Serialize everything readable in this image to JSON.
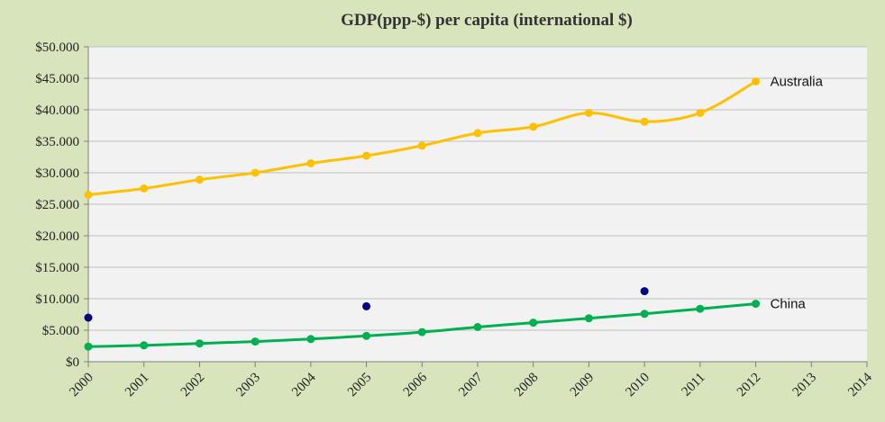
{
  "chart_data": {
    "type": "line",
    "title": "GDP(ppp-$) per capita (international $)",
    "xlabel": "",
    "ylabel": "",
    "x": [
      2000,
      2001,
      2002,
      2003,
      2004,
      2005,
      2006,
      2007,
      2008,
      2009,
      2010,
      2011,
      2012,
      2013,
      2014
    ],
    "xlim": [
      2000,
      2014
    ],
    "ylim": [
      0,
      50000
    ],
    "yticks": [
      0,
      5000,
      10000,
      15000,
      20000,
      25000,
      30000,
      35000,
      40000,
      45000,
      50000
    ],
    "ytick_labels": [
      "$0",
      "$5.000",
      "$10.000",
      "$15.000",
      "$20.000",
      "$25.000",
      "$30.000",
      "$35.000",
      "$40.000",
      "$45.000",
      "$50.000"
    ],
    "xtick_labels": [
      "2000",
      "2001",
      "2002",
      "2003",
      "2004",
      "2005",
      "2006",
      "2007",
      "2008",
      "2009",
      "2010",
      "2011",
      "2012",
      "2013",
      "2014"
    ],
    "grid": true,
    "series": [
      {
        "name": "Australia",
        "color": "#ffc000",
        "x": [
          2000,
          2001,
          2002,
          2003,
          2004,
          2005,
          2006,
          2007,
          2008,
          2009,
          2010,
          2011,
          2012
        ],
        "values": [
          26500,
          27500,
          28900,
          30000,
          31500,
          32700,
          34300,
          36300,
          37300,
          39500,
          38100,
          39500,
          44500
        ]
      },
      {
        "name": "China",
        "color": "#00b050",
        "x": [
          2000,
          2001,
          2002,
          2003,
          2004,
          2005,
          2006,
          2007,
          2008,
          2009,
          2010,
          2011,
          2012
        ],
        "values": [
          2400,
          2600,
          2900,
          3200,
          3600,
          4100,
          4700,
          5500,
          6200,
          6900,
          7600,
          8400,
          9200
        ]
      },
      {
        "name": "",
        "color": "#000080",
        "style": "markers-only",
        "x": [
          2000,
          2005,
          2010
        ],
        "values": [
          7000,
          8800,
          11200
        ]
      }
    ]
  }
}
